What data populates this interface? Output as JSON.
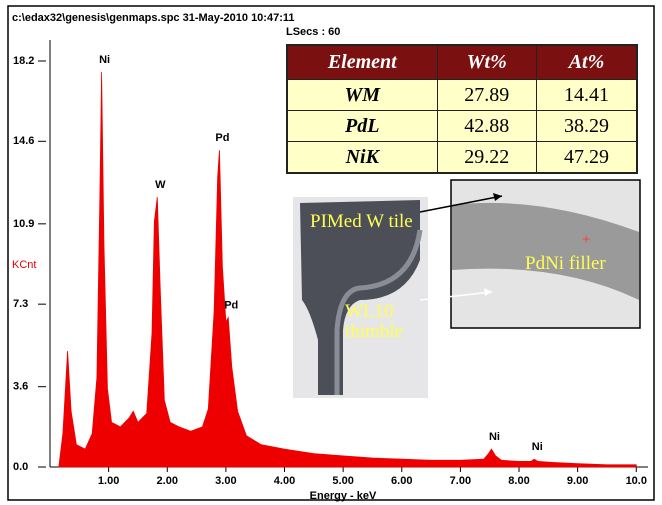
{
  "chart_data": {
    "type": "area",
    "title": "c:\\edax32\\genesis\\genmaps.spc  31-May-2010 10:47:11",
    "subtitle": "LSecs : 60",
    "x_label": "Energy - keV",
    "y_label": "KCnt",
    "color": "#ee0000",
    "x": [
      0.15,
      0.22,
      0.3,
      0.36,
      0.45,
      0.6,
      0.72,
      0.8,
      0.85,
      0.88,
      0.92,
      0.98,
      1.05,
      1.2,
      1.35,
      1.42,
      1.5,
      1.65,
      1.74,
      1.78,
      1.83,
      1.88,
      1.95,
      2.05,
      2.2,
      2.4,
      2.6,
      2.7,
      2.8,
      2.86,
      2.89,
      2.94,
      3.0,
      3.04,
      3.1,
      3.2,
      3.35,
      3.6,
      4.0,
      4.5,
      5.0,
      5.5,
      6.0,
      6.5,
      7.0,
      7.4,
      7.48,
      7.53,
      7.6,
      7.7,
      8.0,
      8.2,
      8.26,
      8.32,
      8.6,
      9.0,
      9.5,
      10.0
    ],
    "values": [
      0,
      1.5,
      5.2,
      2.5,
      1.0,
      0.8,
      1.5,
      4,
      12,
      17.7,
      10,
      3.5,
      2.0,
      1.8,
      2.2,
      2.5,
      2.0,
      2.4,
      6,
      11,
      12.1,
      8,
      3,
      2.0,
      1.8,
      1.6,
      1.8,
      2.6,
      7,
      13,
      14.2,
      9,
      6.5,
      6.7,
      4.5,
      2.5,
      1.4,
      1.0,
      0.8,
      0.6,
      0.5,
      0.4,
      0.35,
      0.3,
      0.3,
      0.35,
      0.6,
      0.8,
      0.5,
      0.3,
      0.25,
      0.25,
      0.35,
      0.25,
      0.2,
      0.15,
      0.1,
      0.1
    ],
    "xlim": [
      0,
      10.2
    ],
    "ylim": [
      0,
      18.2
    ],
    "xticks": [
      {
        "value": 1,
        "label": "1.00"
      },
      {
        "value": 2,
        "label": "2.00"
      },
      {
        "value": 3,
        "label": "3.00"
      },
      {
        "value": 4,
        "label": "4.00"
      },
      {
        "value": 5,
        "label": "5.00"
      },
      {
        "value": 6,
        "label": "6.00"
      },
      {
        "value": 7,
        "label": "7.00"
      },
      {
        "value": 8,
        "label": "8.00"
      },
      {
        "value": 9,
        "label": "9.00"
      },
      {
        "value": 10,
        "label": "10.0"
      }
    ],
    "yticks": [
      {
        "value": 0,
        "label": "0.0"
      },
      3.6,
      7.3,
      10.9,
      14.6,
      18.2
    ],
    "annotations": [
      {
        "text": "Ni",
        "x": 0.88,
        "y": 17.7
      },
      {
        "text": "W",
        "x": 1.83,
        "y": 12.1
      },
      {
        "text": "Pd",
        "x": 2.89,
        "y": 14.2
      },
      {
        "text": "Pd",
        "x": 3.04,
        "y": 6.7
      },
      {
        "text": "Ni",
        "x": 7.53,
        "y": 0.8
      },
      {
        "text": "Ni",
        "x": 8.26,
        "y": 0.35
      }
    ]
  },
  "table": {
    "header": [
      "Element",
      "Wt%",
      "At%"
    ],
    "rows": [
      [
        "WM",
        27.89,
        14.41
      ],
      [
        "PdL",
        42.88,
        38.29
      ],
      [
        "NiK",
        29.22,
        47.29
      ]
    ]
  },
  "images": {
    "labels": [
      "PIMed W tile",
      "WL10 thimble",
      "PdNi filler"
    ]
  }
}
